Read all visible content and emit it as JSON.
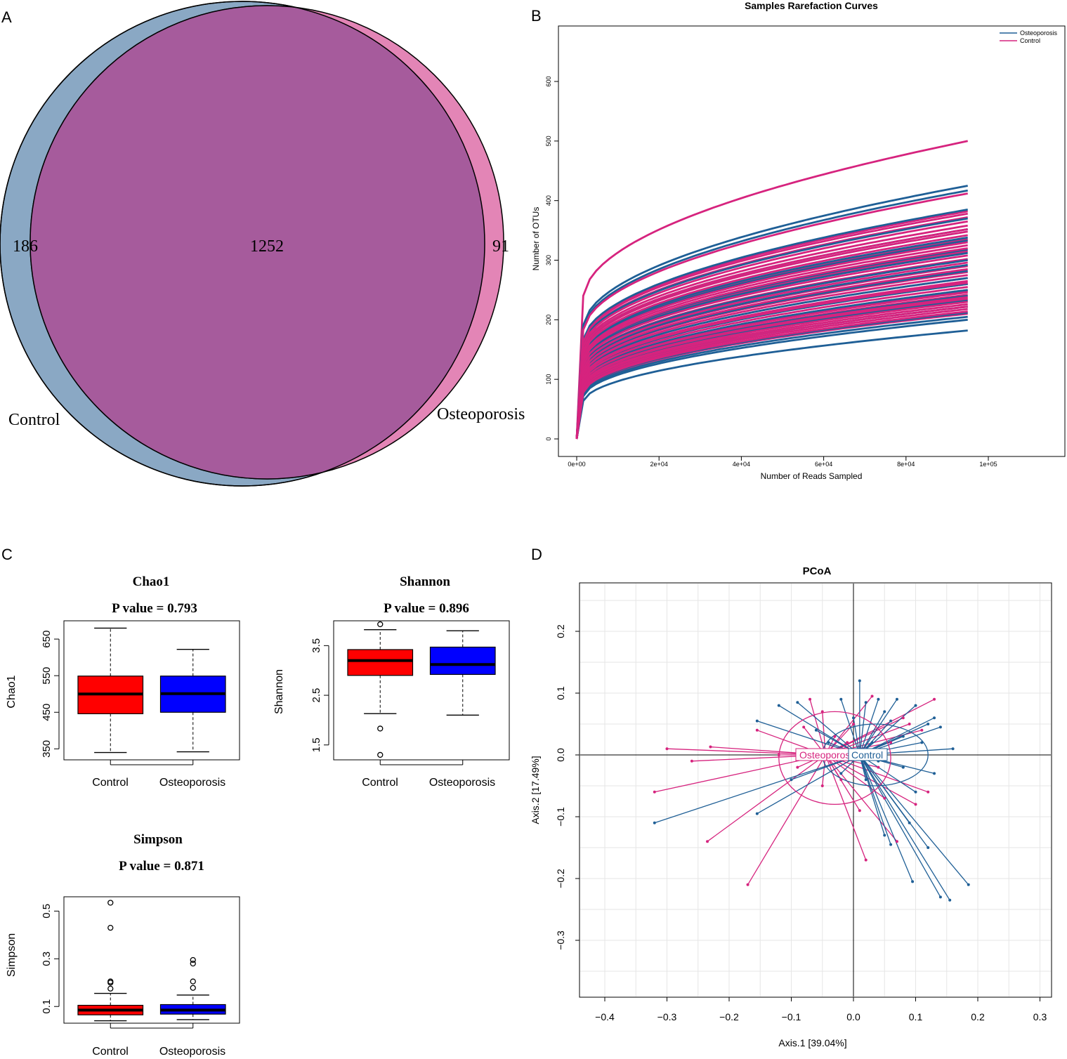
{
  "colors": {
    "control": "#1f5f96",
    "osteoporosis": "#d6237e",
    "box_red": "#ff0000",
    "box_blue": "#0000ff",
    "venn_control": "#8aa8c4",
    "venn_osteo": "#e385b6",
    "venn_overlap": "#a65b9c"
  },
  "chart_data": [
    {
      "panel": "A",
      "type": "venn",
      "sets": [
        {
          "name": "Control",
          "unique": 186
        },
        {
          "name": "Osteoporosis",
          "unique": 91
        }
      ],
      "shared": 1252
    },
    {
      "panel": "B",
      "type": "line",
      "title": "Samples Rarefaction Curves",
      "xlabel": "Number of Reads Sampled",
      "ylabel": "Number of OTUs",
      "xlim": [
        0,
        120000
      ],
      "ylim": [
        0,
        700
      ],
      "x_ticks": [
        0,
        20000,
        40000,
        60000,
        80000,
        100000
      ],
      "x_tick_labels": [
        "0e+00",
        "2e+04",
        "4e+04",
        "6e+04",
        "8e+04",
        "1e+05"
      ],
      "y_ticks": [
        0,
        100,
        200,
        300,
        400,
        500,
        600
      ],
      "y_tick_labels": [
        "0",
        "100",
        "200",
        "300",
        "400",
        "500",
        "600"
      ],
      "max_reads": 95000,
      "legend": [
        "Osteoporosis",
        "Control"
      ],
      "series": [
        {
          "name": "Osteoporosis",
          "final_values": [
            425,
            417,
            385,
            370,
            352,
            338,
            333,
            318,
            312,
            300,
            292,
            282,
            270,
            260,
            250,
            240,
            232,
            222,
            212,
            205,
            200,
            182
          ]
        },
        {
          "name": "Control",
          "final_values": [
            500,
            412,
            382,
            378,
            372,
            365,
            358,
            352,
            348,
            342,
            335,
            330,
            325,
            320,
            315,
            308,
            302,
            296,
            290,
            285,
            280,
            275,
            270,
            265,
            260,
            255,
            250,
            246,
            242,
            238,
            234,
            230,
            226,
            222,
            218,
            214,
            210,
            262,
            248,
            236
          ]
        }
      ]
    },
    {
      "panel": "C",
      "type": "box",
      "plots": [
        {
          "title": "Chao1",
          "pvalue": "P value = 0.793",
          "ylabel": "Chao1",
          "ylim": [
            320,
            700
          ],
          "y_ticks": [
            350,
            450,
            550,
            650
          ],
          "y_tick_labels": [
            "350",
            "450",
            "550",
            "650"
          ],
          "categories": [
            "Control",
            "Osteoporosis"
          ],
          "boxes": [
            {
              "name": "Control",
              "min": 340,
              "q1": 446,
              "median": 500,
              "q3": 549,
              "max": 680,
              "outliers": []
            },
            {
              "name": "Osteoporosis",
              "min": 342,
              "q1": 450,
              "median": 501,
              "q3": 549,
              "max": 622,
              "outliers": []
            }
          ]
        },
        {
          "title": "Shannon",
          "pvalue": "P value = 0.896",
          "ylabel": "Shannon",
          "ylim": [
            1.2,
            4.0
          ],
          "y_ticks": [
            1.5,
            2.5,
            3.5
          ],
          "y_tick_labels": [
            "1.5",
            "2.5",
            "3.5"
          ],
          "categories": [
            "Control",
            "Osteoporosis"
          ],
          "boxes": [
            {
              "name": "Control",
              "min": 2.13,
              "q1": 2.9,
              "median": 3.2,
              "q3": 3.42,
              "max": 3.82,
              "outliers": [
                1.83,
                1.3,
                3.93
              ]
            },
            {
              "name": "Osteoporosis",
              "min": 2.1,
              "q1": 2.92,
              "median": 3.12,
              "q3": 3.47,
              "max": 3.8,
              "outliers": []
            }
          ]
        },
        {
          "title": "Simpson",
          "pvalue": "P value = 0.871",
          "ylabel": "Simpson",
          "ylim": [
            0.03,
            0.56
          ],
          "y_ticks": [
            0.1,
            0.3,
            0.5
          ],
          "y_tick_labels": [
            "0.1",
            "0.3",
            "0.5"
          ],
          "categories": [
            "Control",
            "Osteoporosis"
          ],
          "boxes": [
            {
              "name": "Control",
              "min": 0.04,
              "q1": 0.065,
              "median": 0.085,
              "q3": 0.105,
              "max": 0.155,
              "outliers": [
                0.175,
                0.2,
                0.205,
                0.43,
                0.535
              ]
            },
            {
              "name": "Osteoporosis",
              "min": 0.045,
              "q1": 0.068,
              "median": 0.085,
              "q3": 0.108,
              "max": 0.148,
              "outliers": [
                0.178,
                0.205,
                0.28,
                0.295
              ]
            }
          ]
        }
      ]
    },
    {
      "panel": "D",
      "type": "scatter",
      "title": "PCoA",
      "xlabel": "Axis.1  [39.04%]",
      "ylabel": "Axis.2  [17.49%]",
      "xlim": [
        -0.45,
        0.31
      ],
      "ylim": [
        -0.39,
        0.27
      ],
      "x_ticks": [
        -0.4,
        -0.3,
        -0.2,
        -0.1,
        0.0,
        0.1,
        0.2,
        0.3
      ],
      "x_tick_labels": [
        "−0.4",
        "−0.3",
        "−0.2",
        "−0.1",
        "0.0",
        "0.1",
        "0.2",
        "0.3"
      ],
      "y_ticks": [
        -0.3,
        -0.2,
        -0.1,
        0.0,
        0.1,
        0.2
      ],
      "y_tick_labels": [
        "−0.3",
        "−0.2",
        "−0.1",
        "0.0",
        "0.1",
        "0.2"
      ],
      "groups": [
        {
          "name": "Control",
          "label": "Control",
          "centroid": [
            0.01,
            0.0
          ],
          "ellipse": {
            "rx": 0.085,
            "ry": 0.05,
            "cx": 0.035,
            "cy": 0.0
          },
          "points": [
            [
              -0.32,
              -0.11
            ],
            [
              -0.155,
              0.055
            ],
            [
              -0.155,
              -0.095
            ],
            [
              -0.12,
              0.08
            ],
            [
              -0.09,
              0.085
            ],
            [
              -0.06,
              0.04
            ],
            [
              -0.04,
              0.02
            ],
            [
              -0.02,
              0.09
            ],
            [
              0.0,
              0.06
            ],
            [
              0.01,
              0.12
            ],
            [
              0.02,
              0.085
            ],
            [
              0.04,
              0.09
            ],
            [
              0.05,
              0.07
            ],
            [
              0.06,
              0.055
            ],
            [
              0.07,
              0.09
            ],
            [
              0.08,
              0.03
            ],
            [
              0.1,
              0.08
            ],
            [
              0.12,
              0.05
            ],
            [
              0.13,
              0.06
            ],
            [
              0.14,
              0.045
            ],
            [
              0.16,
              0.01
            ],
            [
              0.13,
              -0.03
            ],
            [
              0.1,
              -0.06
            ],
            [
              0.05,
              -0.13
            ],
            [
              0.06,
              -0.145
            ],
            [
              0.095,
              -0.205
            ],
            [
              0.12,
              -0.15
            ],
            [
              0.14,
              -0.23
            ],
            [
              0.155,
              -0.235
            ],
            [
              0.185,
              -0.21
            ],
            [
              0.02,
              -0.04
            ],
            [
              -0.02,
              -0.03
            ],
            [
              0.04,
              -0.01
            ],
            [
              0.08,
              -0.02
            ],
            [
              -0.1,
              -0.04
            ],
            [
              0.03,
              0.02
            ],
            [
              0.11,
              0.02
            ],
            [
              0.09,
              -0.11
            ]
          ]
        },
        {
          "name": "Osteoporosis",
          "label": "Osteoporosis",
          "centroid": [
            -0.045,
            0.0
          ],
          "ellipse": {
            "rx": 0.09,
            "ry": 0.075,
            "cx": -0.03,
            "cy": -0.005
          },
          "points": [
            [
              -0.32,
              -0.06
            ],
            [
              -0.3,
              0.01
            ],
            [
              -0.26,
              -0.01
            ],
            [
              -0.23,
              0.013
            ],
            [
              -0.235,
              -0.14
            ],
            [
              -0.17,
              -0.21
            ],
            [
              -0.155,
              0.04
            ],
            [
              -0.12,
              0.0
            ],
            [
              -0.09,
              -0.02
            ],
            [
              -0.07,
              0.09
            ],
            [
              -0.05,
              0.07
            ],
            [
              -0.03,
              0.03
            ],
            [
              -0.02,
              -0.04
            ],
            [
              0.0,
              0.05
            ],
            [
              0.02,
              -0.17
            ],
            [
              0.03,
              0.095
            ],
            [
              0.05,
              -0.07
            ],
            [
              0.07,
              -0.14
            ],
            [
              0.08,
              0.06
            ],
            [
              0.1,
              -0.08
            ],
            [
              0.12,
              -0.06
            ],
            [
              0.13,
              0.09
            ],
            [
              0.11,
              0.04
            ],
            [
              0.06,
              0.02
            ],
            [
              -0.05,
              -0.05
            ],
            [
              -0.08,
              0.045
            ],
            [
              0.01,
              -0.09
            ],
            [
              -0.01,
              0.02
            ],
            [
              0.09,
              0.05
            ],
            [
              0.04,
              -0.02
            ]
          ]
        }
      ]
    }
  ],
  "panels": {
    "a_label": "A",
    "b_label": "B",
    "c_label": "C",
    "d_label": "D"
  }
}
